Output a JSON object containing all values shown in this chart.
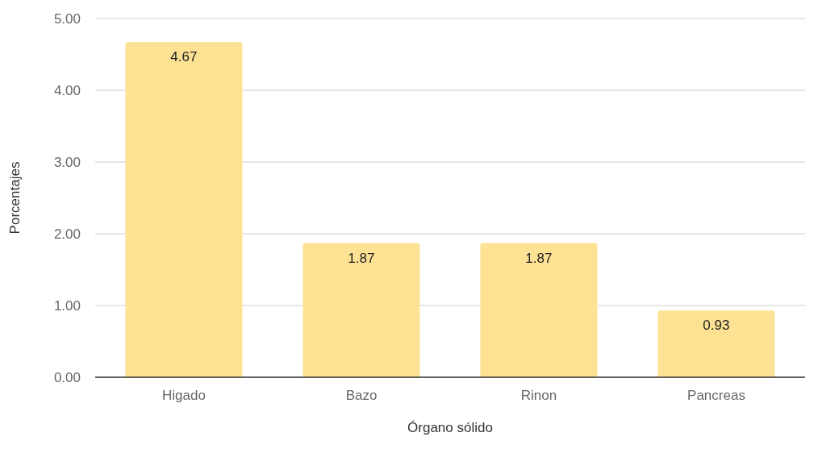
{
  "chart_data": {
    "type": "bar",
    "xlabel": "Órgano sólido",
    "ylabel": "Porcentajes",
    "categories": [
      "Higado",
      "Bazo",
      "Rinon",
      "Pancreas"
    ],
    "values": [
      4.67,
      1.87,
      1.87,
      0.93
    ],
    "color": "#fde293",
    "ylim": [
      0,
      5
    ],
    "yticks": [
      {
        "value": 0,
        "label": "0.00"
      },
      {
        "value": 1,
        "label": "1.00"
      },
      {
        "value": 2,
        "label": "2.00"
      },
      {
        "value": 3,
        "label": "3.00"
      },
      {
        "value": 4,
        "label": "4.00"
      },
      {
        "value": 5,
        "label": "5.00"
      }
    ],
    "grid": "y",
    "data_labels": true
  }
}
